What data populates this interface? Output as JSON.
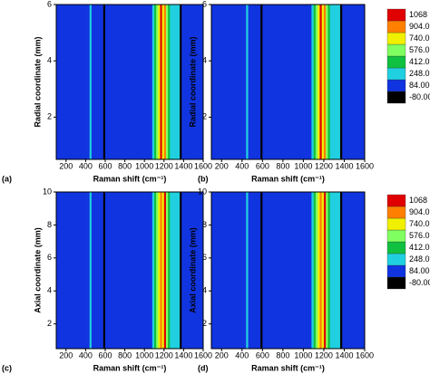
{
  "chart_data": [
    {
      "type": "contour",
      "panel_label": "(a)",
      "x_label": "Raman shift (cm⁻¹)",
      "y_label": "Radial coordinate (mm)",
      "xlim": [
        100,
        1600
      ],
      "xticks": [
        200,
        400,
        600,
        800,
        1000,
        1200,
        1400,
        1600
      ],
      "ylim": [
        0.5,
        6
      ],
      "yticks": [
        2,
        4,
        6
      ],
      "x": [
        100,
        420,
        440,
        460,
        560,
        580,
        600,
        1060,
        1080,
        1100,
        1120,
        1140,
        1160,
        1180,
        1200,
        1220,
        1240,
        1260,
        1300,
        1340,
        1360,
        1380,
        1600
      ],
      "values": [
        150,
        150,
        350,
        150,
        150,
        -60,
        150,
        150,
        300,
        500,
        700,
        850,
        1080,
        800,
        1000,
        700,
        500,
        350,
        320,
        300,
        -40,
        150,
        150
      ],
      "levels": [
        {
          "value": -80,
          "label": "-80.00"
        },
        {
          "value": 84,
          "label": "84.00"
        },
        {
          "value": 248,
          "label": "248.0"
        },
        {
          "value": 412,
          "label": "412.0"
        },
        {
          "value": 576,
          "label": "576.0"
        },
        {
          "value": 740,
          "label": "740.0"
        },
        {
          "value": 904,
          "label": "904.0"
        },
        1068
      ],
      "colors": [
        "#000000",
        "#1034e0",
        "#20d0e0",
        "#10c040",
        "#80ff60",
        "#f0f000",
        "#ff8000",
        "#e00000"
      ],
      "colorbar": false
    },
    {
      "type": "contour",
      "panel_label": "(b)",
      "x_label": "Raman shift (cm⁻¹)",
      "y_label": "Radial coordinate (mm)",
      "xlim": [
        100,
        1600
      ],
      "xticks": [
        200,
        400,
        600,
        800,
        1000,
        1200,
        1400,
        1600
      ],
      "ylim": [
        0.5,
        6
      ],
      "yticks": [
        2,
        4,
        6
      ],
      "x": [
        100,
        420,
        440,
        460,
        560,
        580,
        600,
        1060,
        1080,
        1100,
        1120,
        1140,
        1160,
        1180,
        1200,
        1220,
        1240,
        1260,
        1300,
        1340,
        1360,
        1380,
        1600
      ],
      "values": [
        150,
        150,
        350,
        150,
        150,
        -60,
        150,
        150,
        300,
        500,
        700,
        900,
        1080,
        850,
        1000,
        700,
        500,
        350,
        320,
        300,
        -40,
        150,
        150
      ],
      "levels": [
        {
          "value": -80,
          "label": "-80.00"
        },
        {
          "value": 84,
          "label": "84.00"
        },
        {
          "value": 248,
          "label": "248.0"
        },
        {
          "value": 412,
          "label": "412.0"
        },
        {
          "value": 576,
          "label": "576.0"
        },
        {
          "value": 740,
          "label": "740.0"
        },
        {
          "value": 904,
          "label": "904.0"
        },
        1068
      ],
      "colors": [
        "#000000",
        "#1034e0",
        "#20d0e0",
        "#10c040",
        "#80ff60",
        "#f0f000",
        "#ff8000",
        "#e00000"
      ],
      "colorbar": true
    },
    {
      "type": "contour",
      "panel_label": "(c)",
      "x_label": "Raman shift (cm⁻¹)",
      "y_label": "Axial coordinate (mm)",
      "xlim": [
        100,
        1600
      ],
      "xticks": [
        200,
        400,
        600,
        800,
        1000,
        1200,
        1400,
        1600
      ],
      "ylim": [
        0.5,
        10
      ],
      "yticks": [
        2,
        4,
        6,
        8,
        10
      ],
      "x": [
        100,
        420,
        440,
        460,
        560,
        580,
        600,
        1060,
        1080,
        1100,
        1120,
        1140,
        1160,
        1180,
        1200,
        1220,
        1240,
        1260,
        1300,
        1340,
        1360,
        1380,
        1600
      ],
      "values": [
        150,
        150,
        350,
        150,
        150,
        -60,
        150,
        150,
        300,
        500,
        700,
        850,
        1000,
        800,
        1080,
        700,
        500,
        350,
        320,
        300,
        -40,
        150,
        150
      ],
      "levels": [
        {
          "value": -80,
          "label": "-80.00"
        },
        {
          "value": 84,
          "label": "84.00"
        },
        {
          "value": 248,
          "label": "248.0"
        },
        {
          "value": 412,
          "label": "412.0"
        },
        {
          "value": 576,
          "label": "576.0"
        },
        {
          "value": 740,
          "label": "740.0"
        },
        {
          "value": 904,
          "label": "904.0"
        },
        1068
      ],
      "colors": [
        "#000000",
        "#1034e0",
        "#20d0e0",
        "#10c040",
        "#80ff60",
        "#f0f000",
        "#ff8000",
        "#e00000"
      ],
      "colorbar": false
    },
    {
      "type": "contour",
      "panel_label": "(d)",
      "x_label": "Raman shift (cm⁻¹)",
      "y_label": "Axial coordinate (mm)",
      "xlim": [
        100,
        1600
      ],
      "xticks": [
        200,
        400,
        600,
        800,
        1000,
        1200,
        1400,
        1600
      ],
      "ylim": [
        0.5,
        10
      ],
      "yticks": [
        2,
        4,
        6,
        8,
        10
      ],
      "x": [
        100,
        420,
        440,
        460,
        560,
        580,
        600,
        1060,
        1080,
        1100,
        1120,
        1140,
        1160,
        1180,
        1200,
        1220,
        1240,
        1260,
        1300,
        1340,
        1360,
        1380,
        1600
      ],
      "values": [
        150,
        150,
        350,
        150,
        150,
        -60,
        150,
        150,
        300,
        500,
        700,
        850,
        1000,
        800,
        1080,
        700,
        500,
        350,
        320,
        300,
        -40,
        150,
        150
      ],
      "levels": [
        {
          "value": -80,
          "label": "-80.00"
        },
        {
          "value": 84,
          "label": "84.00"
        },
        {
          "value": 248,
          "label": "248.0"
        },
        {
          "value": 412,
          "label": "412.0"
        },
        {
          "value": 576,
          "label": "576.0"
        },
        {
          "value": 740,
          "label": "740.0"
        },
        {
          "value": 904,
          "label": "904.0"
        },
        1068
      ],
      "colors": [
        "#000000",
        "#1034e0",
        "#20d0e0",
        "#10c040",
        "#80ff60",
        "#f0f000",
        "#ff8000",
        "#e00000"
      ],
      "colorbar": true
    }
  ]
}
